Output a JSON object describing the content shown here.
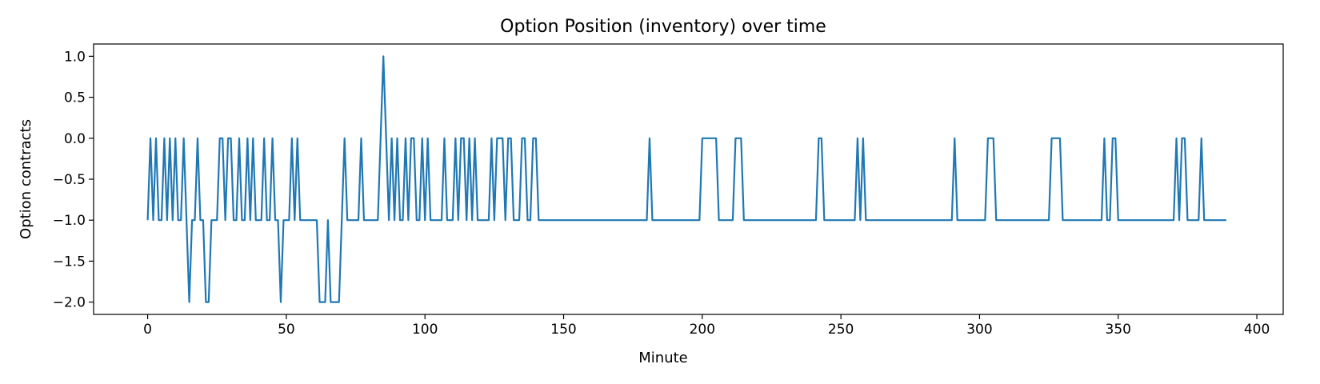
{
  "chart_data": {
    "type": "line",
    "title": "Option Position (inventory) over time",
    "xlabel": "Minute",
    "ylabel": "Option contracts",
    "xlim": [
      -19.5,
      409.5
    ],
    "ylim": [
      -2.15,
      1.15
    ],
    "xticks": [
      0,
      50,
      100,
      150,
      200,
      250,
      300,
      350,
      400
    ],
    "yticks": [
      1.0,
      0.5,
      0.0,
      -0.5,
      -1.0,
      -1.5,
      -2.0
    ],
    "xtick_labels": [
      "0",
      "50",
      "100",
      "150",
      "200",
      "250",
      "300",
      "350",
      "400"
    ],
    "ytick_labels": [
      "1.0",
      "0.5",
      "0.0",
      "−0.5",
      "−1.0",
      "−1.5",
      "−2.0"
    ],
    "grid": false,
    "line_color": "#1f77b4",
    "series": [
      {
        "values": [
          [
            0,
            -1
          ],
          [
            1,
            0
          ],
          [
            2,
            -1
          ],
          [
            3,
            0
          ],
          [
            4,
            -1
          ],
          [
            5,
            -1
          ],
          [
            6,
            0
          ],
          [
            7,
            -1
          ],
          [
            8,
            0
          ],
          [
            9,
            -1
          ],
          [
            10,
            0
          ],
          [
            11,
            -1
          ],
          [
            12,
            -1
          ],
          [
            13,
            0
          ],
          [
            14,
            -1
          ],
          [
            15,
            -2
          ],
          [
            16,
            -1
          ],
          [
            17,
            -1
          ],
          [
            18,
            0
          ],
          [
            19,
            -1
          ],
          [
            20,
            -1
          ],
          [
            21,
            -2
          ],
          [
            22,
            -2
          ],
          [
            23,
            -1
          ],
          [
            24,
            -1
          ],
          [
            25,
            -1
          ],
          [
            26,
            0
          ],
          [
            27,
            0
          ],
          [
            28,
            -1
          ],
          [
            29,
            0
          ],
          [
            30,
            0
          ],
          [
            31,
            -1
          ],
          [
            32,
            -1
          ],
          [
            33,
            0
          ],
          [
            34,
            -1
          ],
          [
            35,
            -1
          ],
          [
            36,
            0
          ],
          [
            37,
            -1
          ],
          [
            38,
            0
          ],
          [
            39,
            -1
          ],
          [
            40,
            -1
          ],
          [
            41,
            -1
          ],
          [
            42,
            0
          ],
          [
            43,
            -1
          ],
          [
            44,
            -1
          ],
          [
            45,
            0
          ],
          [
            46,
            -1
          ],
          [
            47,
            -1
          ],
          [
            48,
            -2
          ],
          [
            49,
            -1
          ],
          [
            50,
            -1
          ],
          [
            51,
            -1
          ],
          [
            52,
            0
          ],
          [
            53,
            -1
          ],
          [
            54,
            0
          ],
          [
            55,
            -1
          ],
          [
            56,
            -1
          ],
          [
            57,
            -1
          ],
          [
            58,
            -1
          ],
          [
            59,
            -1
          ],
          [
            60,
            -1
          ],
          [
            61,
            -1
          ],
          [
            62,
            -2
          ],
          [
            63,
            -2
          ],
          [
            64,
            -2
          ],
          [
            65,
            -1
          ],
          [
            66,
            -2
          ],
          [
            67,
            -2
          ],
          [
            68,
            -2
          ],
          [
            69,
            -2
          ],
          [
            70,
            -1
          ],
          [
            71,
            0
          ],
          [
            72,
            -1
          ],
          [
            73,
            -1
          ],
          [
            74,
            -1
          ],
          [
            75,
            -1
          ],
          [
            76,
            -1
          ],
          [
            77,
            0
          ],
          [
            78,
            -1
          ],
          [
            79,
            -1
          ],
          [
            80,
            -1
          ],
          [
            81,
            -1
          ],
          [
            82,
            -1
          ],
          [
            83,
            -1
          ],
          [
            84,
            0
          ],
          [
            85,
            1
          ],
          [
            86,
            0
          ],
          [
            87,
            -1
          ],
          [
            88,
            0
          ],
          [
            89,
            -1
          ],
          [
            90,
            0
          ],
          [
            91,
            -1
          ],
          [
            92,
            -1
          ],
          [
            93,
            0
          ],
          [
            94,
            -1
          ],
          [
            95,
            0
          ],
          [
            96,
            0
          ],
          [
            97,
            -1
          ],
          [
            98,
            -1
          ],
          [
            99,
            0
          ],
          [
            100,
            -1
          ],
          [
            101,
            0
          ],
          [
            102,
            -1
          ],
          [
            103,
            -1
          ],
          [
            104,
            -1
          ],
          [
            105,
            -1
          ],
          [
            106,
            -1
          ],
          [
            107,
            0
          ],
          [
            108,
            -1
          ],
          [
            109,
            -1
          ],
          [
            110,
            -1
          ],
          [
            111,
            0
          ],
          [
            112,
            -1
          ],
          [
            113,
            0
          ],
          [
            114,
            0
          ],
          [
            115,
            -1
          ],
          [
            116,
            0
          ],
          [
            117,
            -1
          ],
          [
            118,
            0
          ],
          [
            119,
            -1
          ],
          [
            120,
            -1
          ],
          [
            121,
            -1
          ],
          [
            122,
            -1
          ],
          [
            123,
            -1
          ],
          [
            124,
            0
          ],
          [
            125,
            -1
          ],
          [
            126,
            0
          ],
          [
            127,
            0
          ],
          [
            128,
            0
          ],
          [
            129,
            -1
          ],
          [
            130,
            0
          ],
          [
            131,
            0
          ],
          [
            132,
            -1
          ],
          [
            133,
            -1
          ],
          [
            134,
            -1
          ],
          [
            135,
            0
          ],
          [
            136,
            0
          ],
          [
            137,
            -1
          ],
          [
            138,
            -1
          ],
          [
            139,
            0
          ],
          [
            140,
            0
          ],
          [
            141,
            -1
          ],
          [
            180,
            -1
          ],
          [
            181,
            0
          ],
          [
            182,
            -1
          ],
          [
            199,
            -1
          ],
          [
            200,
            0
          ],
          [
            201,
            0
          ],
          [
            202,
            0
          ],
          [
            203,
            0
          ],
          [
            204,
            0
          ],
          [
            205,
            0
          ],
          [
            206,
            -1
          ],
          [
            207,
            -1
          ],
          [
            208,
            -1
          ],
          [
            209,
            -1
          ],
          [
            210,
            -1
          ],
          [
            211,
            -1
          ],
          [
            212,
            0
          ],
          [
            213,
            0
          ],
          [
            214,
            0
          ],
          [
            215,
            -1
          ],
          [
            241,
            -1
          ],
          [
            242,
            0
          ],
          [
            243,
            0
          ],
          [
            244,
            -1
          ],
          [
            255,
            -1
          ],
          [
            256,
            0
          ],
          [
            257,
            -1
          ],
          [
            258,
            0
          ],
          [
            259,
            -1
          ],
          [
            290,
            -1
          ],
          [
            291,
            0
          ],
          [
            292,
            -1
          ],
          [
            302,
            -1
          ],
          [
            303,
            0
          ],
          [
            304,
            0
          ],
          [
            305,
            0
          ],
          [
            306,
            -1
          ],
          [
            325,
            -1
          ],
          [
            326,
            0
          ],
          [
            327,
            0
          ],
          [
            328,
            0
          ],
          [
            329,
            0
          ],
          [
            330,
            -1
          ],
          [
            344,
            -1
          ],
          [
            345,
            0
          ],
          [
            346,
            -1
          ],
          [
            347,
            -1
          ],
          [
            348,
            0
          ],
          [
            349,
            0
          ],
          [
            350,
            -1
          ],
          [
            370,
            -1
          ],
          [
            371,
            0
          ],
          [
            372,
            -1
          ],
          [
            373,
            0
          ],
          [
            374,
            0
          ],
          [
            375,
            -1
          ],
          [
            376,
            -1
          ],
          [
            377,
            -1
          ],
          [
            378,
            -1
          ],
          [
            379,
            -1
          ],
          [
            380,
            0
          ],
          [
            381,
            -1
          ],
          [
            389,
            -1
          ]
        ]
      }
    ]
  }
}
